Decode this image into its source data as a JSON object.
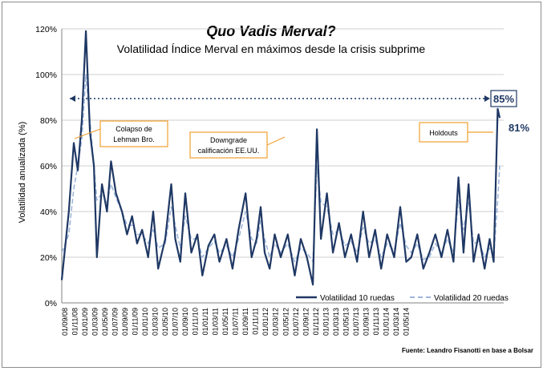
{
  "chart_data": {
    "type": "line",
    "title": "Quo Vadis Merval?",
    "subtitle": "Volatilidad Índice Merval en máximos desde la crisis subprime",
    "ylabel": "Volatilidad anualizada (%)",
    "xlabel": "",
    "ylim": [
      0,
      120
    ],
    "y_ticks": [
      "0%",
      "20%",
      "40%",
      "60%",
      "80%",
      "100%",
      "120%"
    ],
    "x_ticks": [
      "01/09/08",
      "01/11/08",
      "01/01/09",
      "01/03/09",
      "01/05/09",
      "01/07/09",
      "01/09/09",
      "01/11/09",
      "01/01/10",
      "01/03/10",
      "01/05/10",
      "01/07/10",
      "01/09/10",
      "01/11/10",
      "01/01/11",
      "01/03/11",
      "01/05/11",
      "01/07/11",
      "01/09/11",
      "01/11/11",
      "01/01/12",
      "01/03/12",
      "01/05/12",
      "01/07/12",
      "01/09/12",
      "01/11/12",
      "01/01/13",
      "01/03/13",
      "01/05/13",
      "01/07/13",
      "01/09/13",
      "01/11/13",
      "01/01/14",
      "01/03/14",
      "01/05/14"
    ],
    "grid": true,
    "legend_position": "bottom-right",
    "series": [
      {
        "name": "Volatilidad 10 ruedas",
        "color": "#1f3864",
        "style": "solid",
        "points": [
          [
            0,
            10
          ],
          [
            0.7,
            40
          ],
          [
            1.2,
            70
          ],
          [
            1.6,
            58
          ],
          [
            2,
            80
          ],
          [
            2.4,
            119
          ],
          [
            2.8,
            75
          ],
          [
            3.2,
            60
          ],
          [
            3.5,
            20
          ],
          [
            4,
            52
          ],
          [
            4.5,
            40
          ],
          [
            4.9,
            62
          ],
          [
            5.4,
            48
          ],
          [
            6,
            40
          ],
          [
            6.5,
            30
          ],
          [
            7,
            38
          ],
          [
            7.5,
            26
          ],
          [
            8,
            32
          ],
          [
            8.6,
            20
          ],
          [
            9.1,
            40
          ],
          [
            9.6,
            15
          ],
          [
            10.3,
            28
          ],
          [
            10.9,
            52
          ],
          [
            11.3,
            28
          ],
          [
            11.8,
            18
          ],
          [
            12.3,
            48
          ],
          [
            12.9,
            22
          ],
          [
            13.5,
            30
          ],
          [
            14,
            12
          ],
          [
            14.6,
            25
          ],
          [
            15.2,
            30
          ],
          [
            15.7,
            18
          ],
          [
            16.4,
            28
          ],
          [
            17,
            15
          ],
          [
            17.6,
            32
          ],
          [
            18.3,
            48
          ],
          [
            18.9,
            20
          ],
          [
            19.4,
            28
          ],
          [
            19.8,
            42
          ],
          [
            20.2,
            22
          ],
          [
            20.7,
            15
          ],
          [
            21.2,
            30
          ],
          [
            21.8,
            20
          ],
          [
            22.5,
            30
          ],
          [
            23.2,
            12
          ],
          [
            23.8,
            28
          ],
          [
            24.4,
            20
          ],
          [
            25,
            8
          ],
          [
            25.4,
            76
          ],
          [
            25.8,
            28
          ],
          [
            26.4,
            48
          ],
          [
            27,
            22
          ],
          [
            27.6,
            35
          ],
          [
            28.2,
            20
          ],
          [
            28.8,
            30
          ],
          [
            29.4,
            18
          ],
          [
            30,
            40
          ],
          [
            30.6,
            20
          ],
          [
            31.2,
            32
          ],
          [
            31.8,
            15
          ],
          [
            32.4,
            30
          ],
          [
            33.1,
            20
          ],
          [
            33.7,
            42
          ],
          [
            34.3,
            18
          ],
          [
            34.8,
            20
          ],
          [
            35.4,
            30
          ],
          [
            36,
            15
          ],
          [
            36.6,
            22
          ],
          [
            37.2,
            30
          ],
          [
            37.8,
            20
          ],
          [
            38.4,
            32
          ],
          [
            39,
            18
          ],
          [
            39.5,
            55
          ],
          [
            40,
            22
          ],
          [
            40.5,
            52
          ],
          [
            41,
            18
          ],
          [
            41.5,
            30
          ],
          [
            42.1,
            15
          ],
          [
            42.6,
            28
          ],
          [
            43,
            18
          ],
          [
            43.4,
            85
          ],
          [
            43.6,
            81
          ]
        ]
      },
      {
        "name": "Volatilidad 20 ruedas",
        "color": "#9db6dc",
        "style": "dashed",
        "points": [
          [
            0,
            22
          ],
          [
            0.7,
            30
          ],
          [
            1.2,
            50
          ],
          [
            1.6,
            60
          ],
          [
            2,
            72
          ],
          [
            2.4,
            100
          ],
          [
            2.8,
            80
          ],
          [
            3.2,
            60
          ],
          [
            3.5,
            45
          ],
          [
            4,
            48
          ],
          [
            4.5,
            44
          ],
          [
            4.9,
            52
          ],
          [
            5.4,
            46
          ],
          [
            6,
            40
          ],
          [
            6.5,
            34
          ],
          [
            7,
            34
          ],
          [
            7.5,
            30
          ],
          [
            8,
            30
          ],
          [
            8.6,
            26
          ],
          [
            9.1,
            32
          ],
          [
            9.6,
            24
          ],
          [
            10.3,
            26
          ],
          [
            10.9,
            42
          ],
          [
            11.3,
            34
          ],
          [
            11.8,
            24
          ],
          [
            12.3,
            38
          ],
          [
            12.9,
            28
          ],
          [
            13.5,
            28
          ],
          [
            14,
            20
          ],
          [
            14.6,
            24
          ],
          [
            15.2,
            27
          ],
          [
            15.7,
            22
          ],
          [
            16.4,
            25
          ],
          [
            17,
            20
          ],
          [
            17.6,
            28
          ],
          [
            18.3,
            40
          ],
          [
            18.9,
            28
          ],
          [
            19.4,
            26
          ],
          [
            19.8,
            36
          ],
          [
            20.2,
            28
          ],
          [
            20.7,
            20
          ],
          [
            21.2,
            26
          ],
          [
            21.8,
            22
          ],
          [
            22.5,
            26
          ],
          [
            23.2,
            18
          ],
          [
            23.8,
            24
          ],
          [
            24.4,
            22
          ],
          [
            25,
            18
          ],
          [
            25.4,
            60
          ],
          [
            25.8,
            44
          ],
          [
            26.4,
            42
          ],
          [
            27,
            30
          ],
          [
            27.6,
            32
          ],
          [
            28.2,
            25
          ],
          [
            28.8,
            27
          ],
          [
            29.4,
            22
          ],
          [
            30,
            33
          ],
          [
            30.6,
            26
          ],
          [
            31.2,
            28
          ],
          [
            31.8,
            20
          ],
          [
            32.4,
            26
          ],
          [
            33.1,
            23
          ],
          [
            33.7,
            35
          ],
          [
            34.3,
            25
          ],
          [
            34.8,
            22
          ],
          [
            35.4,
            26
          ],
          [
            36,
            19
          ],
          [
            36.6,
            20
          ],
          [
            37.2,
            26
          ],
          [
            37.8,
            22
          ],
          [
            38.4,
            28
          ],
          [
            39,
            22
          ],
          [
            39.5,
            45
          ],
          [
            40,
            32
          ],
          [
            40.5,
            44
          ],
          [
            41,
            26
          ],
          [
            41.5,
            27
          ],
          [
            42.1,
            20
          ],
          [
            42.6,
            24
          ],
          [
            43,
            20
          ],
          [
            43.4,
            45
          ],
          [
            43.6,
            60
          ]
        ]
      }
    ],
    "annotations": [
      {
        "text": "Colapso de\nLehman Bro."
      },
      {
        "text": "Downgrade\ncalificación EE.UU."
      },
      {
        "text": "Holdouts"
      },
      {
        "text": "85%"
      },
      {
        "text": "81%"
      }
    ],
    "source": "Fuente: Leandro Fisanotti en base a Bolsar"
  }
}
